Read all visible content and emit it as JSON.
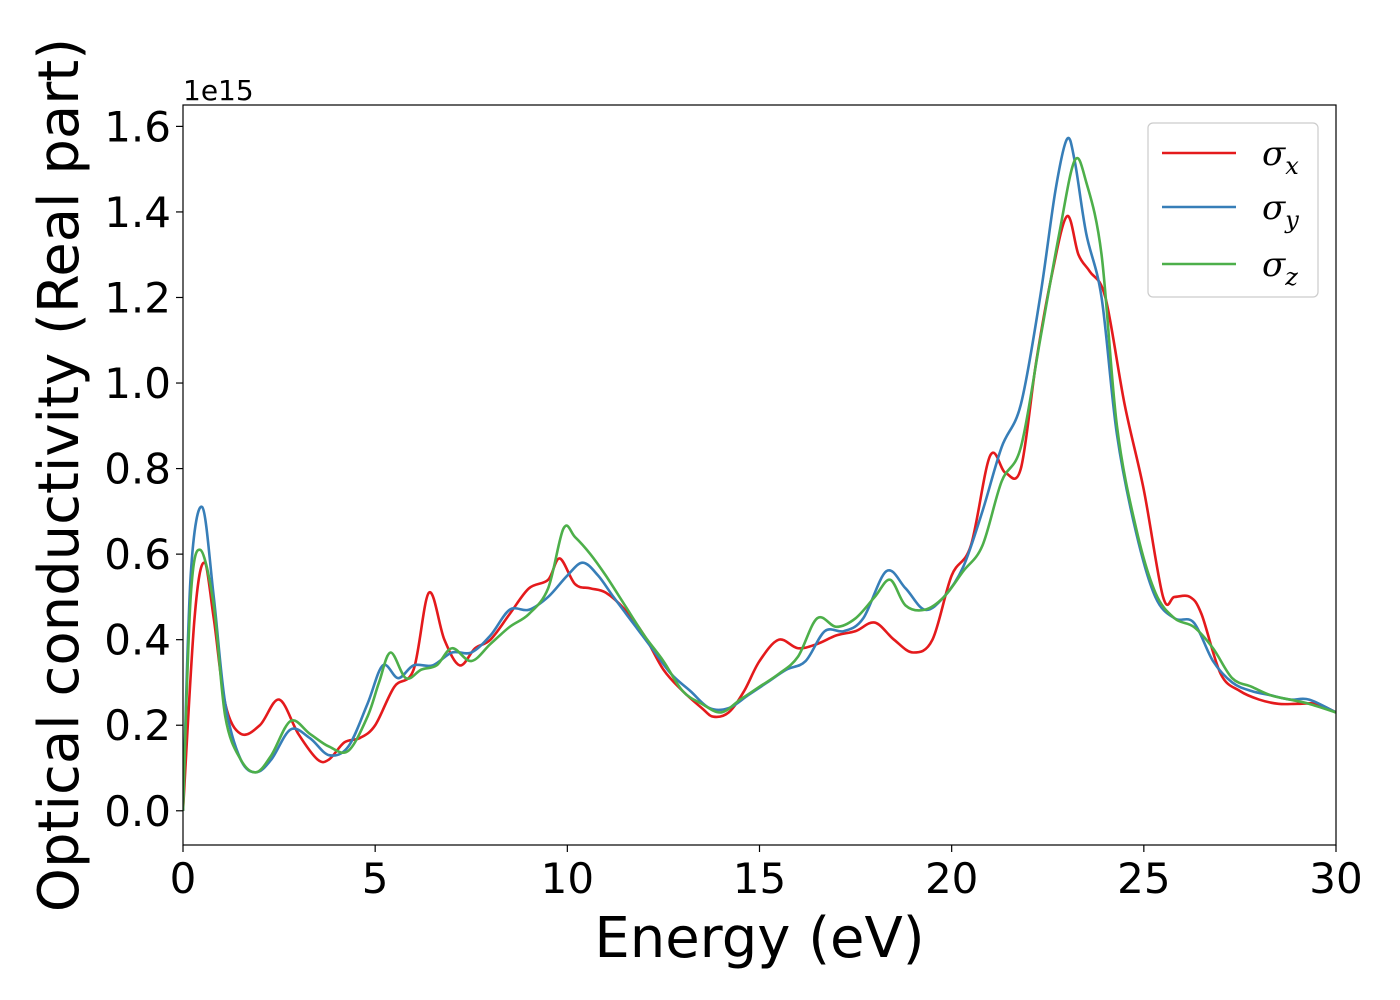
{
  "chart_data": {
    "type": "line",
    "title": "",
    "xlabel": "Energy (eV)",
    "ylabel": "Optical conductivity (Real part)",
    "y_offset_label": "1e15",
    "xlim": [
      0,
      30
    ],
    "ylim": [
      -0.08,
      1.65
    ],
    "x_ticks": [
      0,
      5,
      10,
      15,
      20,
      25,
      30
    ],
    "x_tick_labels": [
      "0",
      "5",
      "10",
      "15",
      "20",
      "25",
      "30"
    ],
    "y_ticks": [
      0.0,
      0.2,
      0.4,
      0.6,
      0.8,
      1.0,
      1.2,
      1.4,
      1.6
    ],
    "y_tick_labels": [
      "0.0",
      "0.2",
      "0.4",
      "0.6",
      "0.8",
      "1.0",
      "1.2",
      "1.4",
      "1.6"
    ],
    "grid": false,
    "legend_position": "top-right",
    "series": [
      {
        "name": "σx",
        "symbol": "σ",
        "sub": "x",
        "color": "#e41a1c",
        "x": [
          0,
          0.3,
          0.55,
          0.8,
          1.1,
          1.5,
          2.0,
          2.5,
          3.0,
          3.5,
          3.8,
          4.2,
          4.6,
          5.0,
          5.5,
          6.0,
          6.4,
          6.8,
          7.2,
          7.6,
          8.0,
          8.5,
          9.0,
          9.5,
          9.8,
          10.2,
          10.6,
          11.0,
          11.5,
          12.0,
          12.5,
          13.0,
          13.5,
          13.8,
          14.2,
          14.6,
          15.0,
          15.5,
          16.0,
          16.5,
          17.0,
          17.5,
          18.0,
          18.5,
          19.0,
          19.5,
          20.0,
          20.5,
          21.0,
          21.4,
          21.8,
          22.2,
          22.6,
          23.0,
          23.3,
          23.6,
          24.0,
          24.5,
          25.0,
          25.5,
          25.8,
          26.2,
          26.5,
          27.0,
          27.5,
          28.0,
          28.5,
          29.0,
          29.5,
          30.0
        ],
        "values": [
          0.0,
          0.45,
          0.58,
          0.45,
          0.25,
          0.18,
          0.2,
          0.26,
          0.18,
          0.12,
          0.12,
          0.16,
          0.17,
          0.2,
          0.29,
          0.33,
          0.51,
          0.4,
          0.34,
          0.38,
          0.4,
          0.46,
          0.52,
          0.54,
          0.59,
          0.53,
          0.52,
          0.51,
          0.47,
          0.41,
          0.33,
          0.28,
          0.24,
          0.22,
          0.23,
          0.28,
          0.35,
          0.4,
          0.38,
          0.39,
          0.41,
          0.42,
          0.44,
          0.4,
          0.37,
          0.4,
          0.55,
          0.62,
          0.83,
          0.79,
          0.8,
          1.05,
          1.25,
          1.39,
          1.3,
          1.26,
          1.2,
          0.95,
          0.75,
          0.5,
          0.5,
          0.5,
          0.46,
          0.32,
          0.28,
          0.26,
          0.25,
          0.25,
          0.25,
          0.23
        ]
      },
      {
        "name": "σy",
        "symbol": "σ",
        "sub": "y",
        "color": "#377eb8",
        "x": [
          0,
          0.2,
          0.5,
          0.8,
          1.1,
          1.5,
          1.9,
          2.3,
          2.8,
          3.3,
          3.8,
          4.3,
          4.8,
          5.2,
          5.6,
          6.0,
          6.5,
          7.0,
          7.5,
          8.0,
          8.5,
          9.0,
          9.5,
          10.0,
          10.4,
          10.8,
          11.2,
          11.7,
          12.2,
          12.7,
          13.2,
          13.7,
          14.2,
          14.7,
          15.2,
          15.7,
          16.2,
          16.7,
          17.2,
          17.7,
          18.3,
          18.8,
          19.3,
          19.8,
          20.3,
          20.8,
          21.3,
          21.8,
          22.3,
          22.7,
          23.0,
          23.2,
          23.5,
          23.9,
          24.3,
          24.8,
          25.3,
          25.8,
          26.3,
          26.8,
          27.3,
          27.8,
          28.3,
          28.8,
          29.3,
          30.0
        ],
        "values": [
          0.0,
          0.55,
          0.71,
          0.5,
          0.25,
          0.12,
          0.09,
          0.12,
          0.19,
          0.17,
          0.13,
          0.15,
          0.25,
          0.34,
          0.31,
          0.34,
          0.34,
          0.37,
          0.37,
          0.41,
          0.47,
          0.47,
          0.5,
          0.55,
          0.58,
          0.55,
          0.5,
          0.44,
          0.38,
          0.32,
          0.28,
          0.24,
          0.24,
          0.27,
          0.3,
          0.33,
          0.35,
          0.42,
          0.42,
          0.45,
          0.56,
          0.52,
          0.47,
          0.5,
          0.57,
          0.7,
          0.85,
          0.95,
          1.2,
          1.45,
          1.57,
          1.52,
          1.35,
          1.2,
          0.88,
          0.65,
          0.5,
          0.45,
          0.44,
          0.35,
          0.3,
          0.28,
          0.27,
          0.26,
          0.26,
          0.23
        ]
      },
      {
        "name": "σz",
        "symbol": "σ",
        "sub": "z",
        "color": "#4daf4a",
        "x": [
          0,
          0.2,
          0.45,
          0.8,
          1.1,
          1.5,
          1.9,
          2.3,
          2.8,
          3.3,
          3.8,
          4.3,
          4.8,
          5.1,
          5.4,
          5.8,
          6.2,
          6.6,
          7.0,
          7.5,
          8.0,
          8.5,
          9.0,
          9.5,
          9.9,
          10.2,
          10.6,
          11.0,
          11.5,
          12.0,
          12.5,
          13.0,
          13.5,
          14.0,
          14.5,
          15.0,
          15.5,
          16.0,
          16.5,
          17.0,
          17.5,
          18.0,
          18.4,
          18.8,
          19.3,
          19.8,
          20.3,
          20.8,
          21.3,
          21.8,
          22.3,
          22.8,
          23.2,
          23.5,
          23.9,
          24.3,
          24.8,
          25.3,
          25.8,
          26.3,
          26.8,
          27.3,
          27.8,
          28.3,
          28.8,
          29.3,
          30.0
        ],
        "values": [
          0.0,
          0.5,
          0.61,
          0.48,
          0.22,
          0.12,
          0.09,
          0.13,
          0.21,
          0.18,
          0.15,
          0.14,
          0.22,
          0.3,
          0.37,
          0.31,
          0.33,
          0.34,
          0.38,
          0.35,
          0.39,
          0.43,
          0.46,
          0.52,
          0.66,
          0.64,
          0.6,
          0.55,
          0.48,
          0.41,
          0.35,
          0.28,
          0.25,
          0.23,
          0.26,
          0.29,
          0.32,
          0.36,
          0.45,
          0.43,
          0.45,
          0.5,
          0.54,
          0.48,
          0.47,
          0.5,
          0.56,
          0.62,
          0.77,
          0.85,
          1.1,
          1.35,
          1.52,
          1.47,
          1.3,
          0.9,
          0.66,
          0.51,
          0.45,
          0.43,
          0.38,
          0.31,
          0.29,
          0.27,
          0.26,
          0.25,
          0.23
        ]
      }
    ]
  }
}
